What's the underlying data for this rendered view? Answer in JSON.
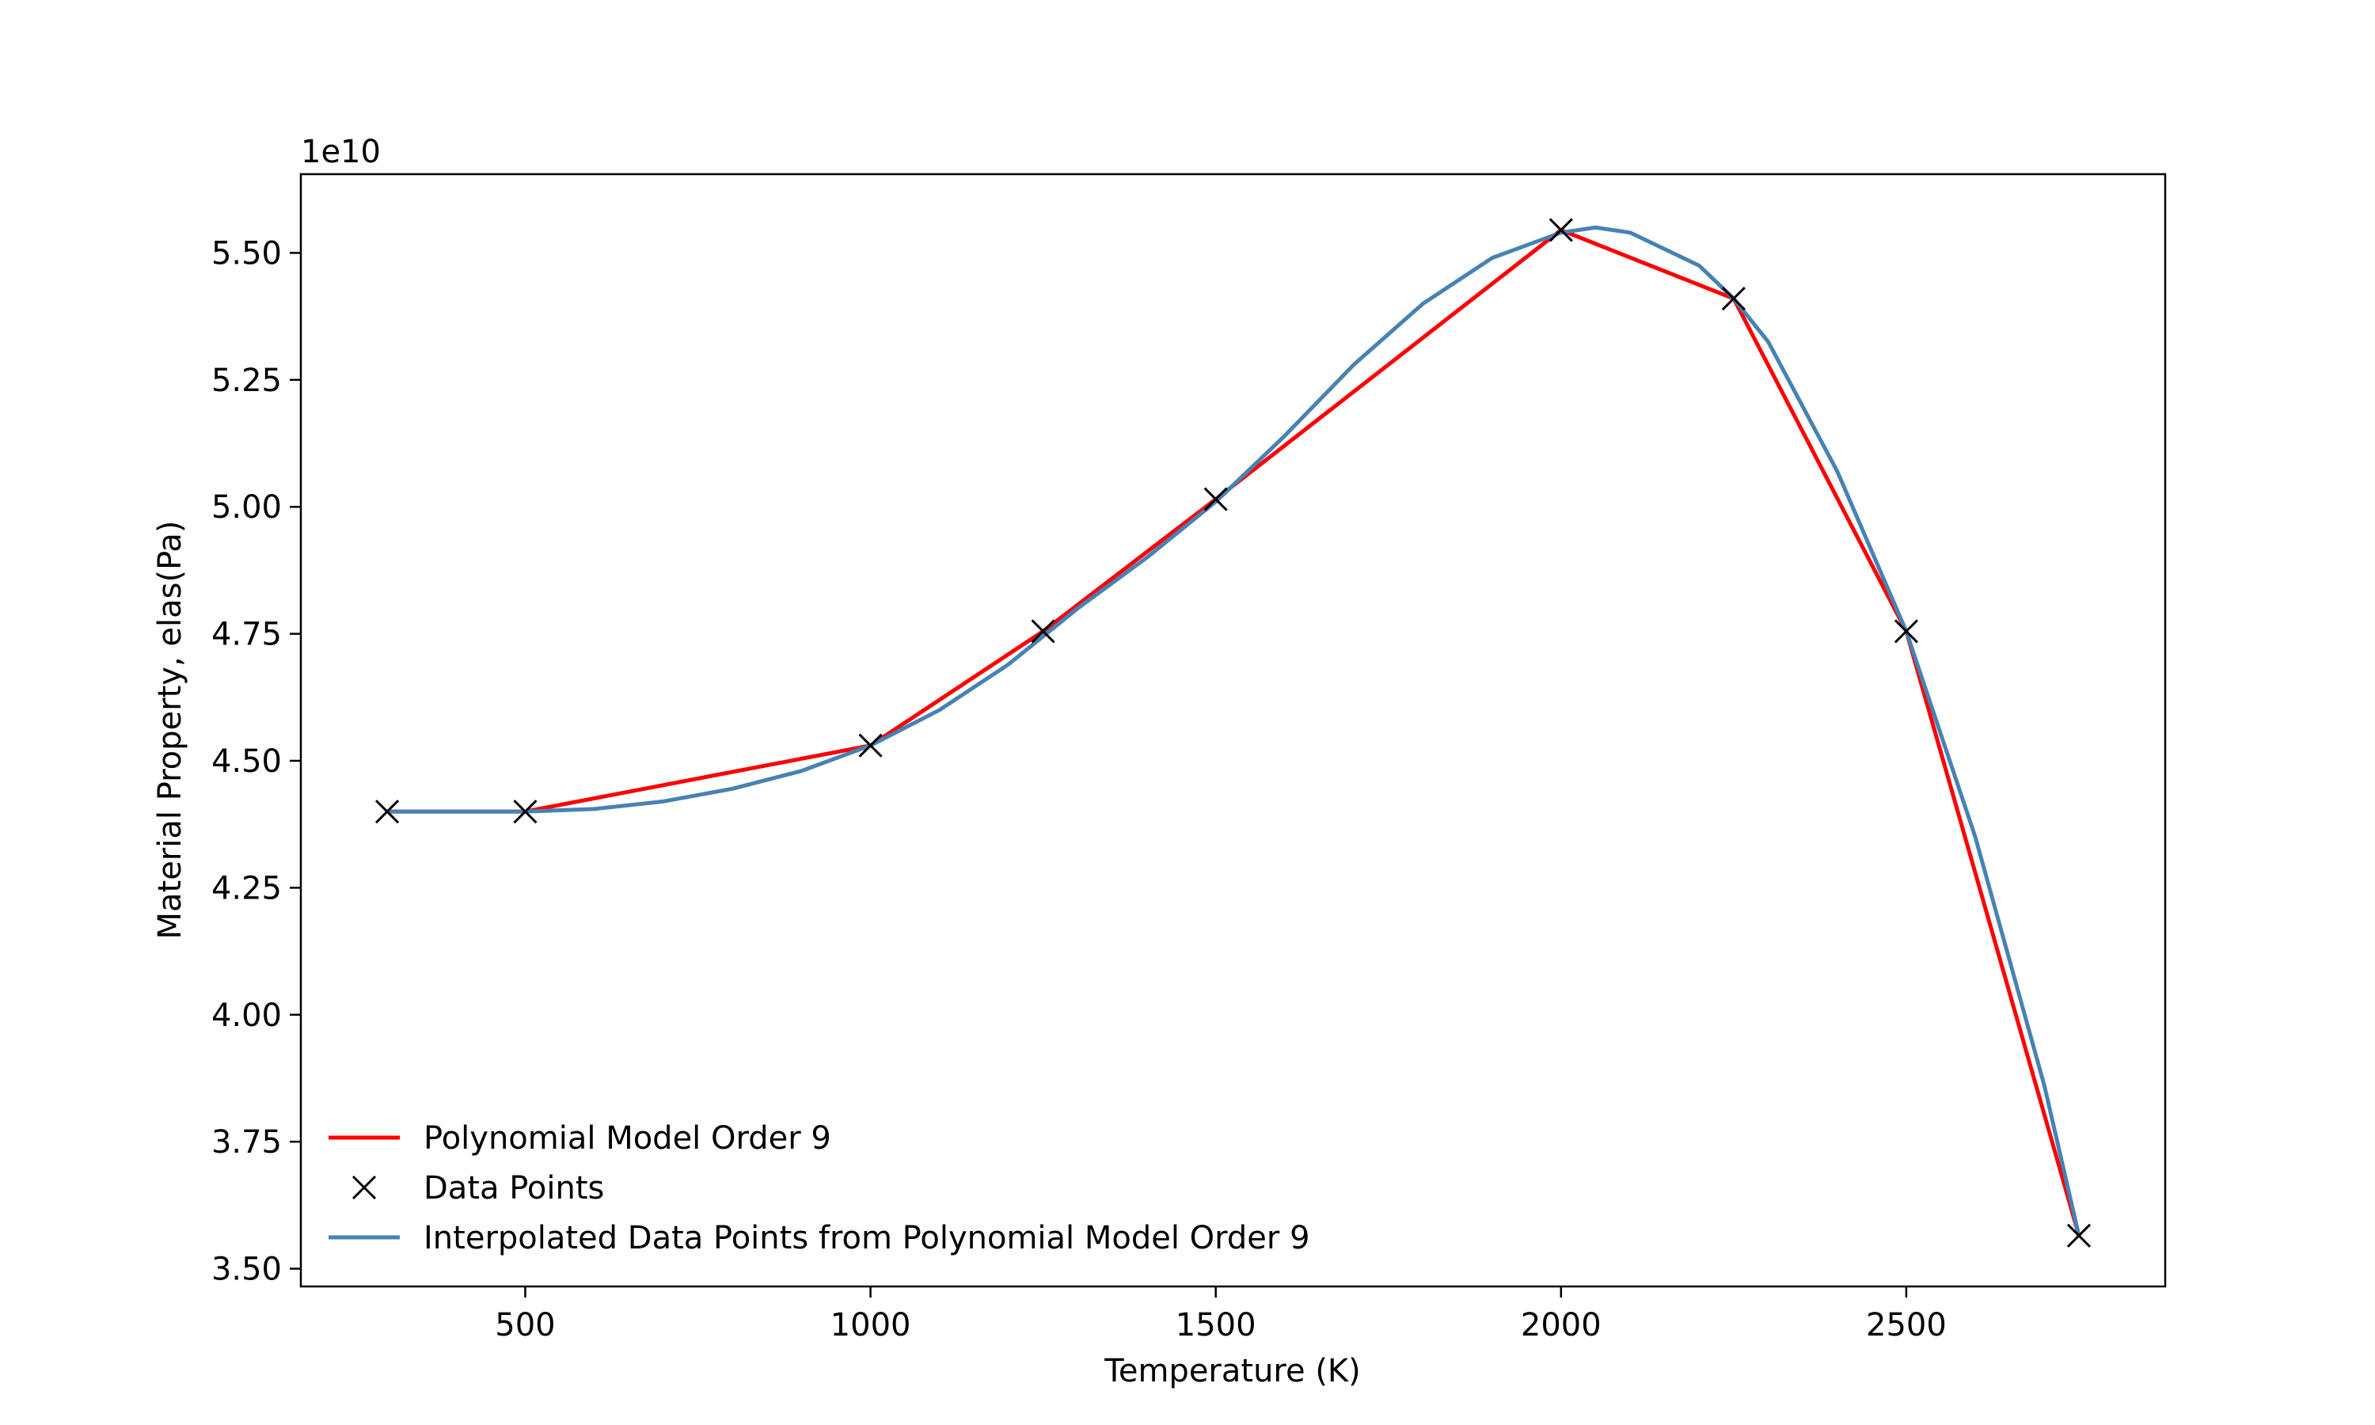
{
  "chart_data": {
    "type": "line",
    "xlabel": "Temperature (K)",
    "ylabel": "Material Property, elas(Pa)",
    "y_offset_label": "1e10",
    "xlim": [
      175,
      2875
    ],
    "ylim": [
      3.465,
      5.655
    ],
    "x_ticks": [
      500,
      1000,
      1500,
      2000,
      2500
    ],
    "x_tick_labels": [
      "500",
      "1000",
      "1500",
      "2000",
      "2500"
    ],
    "y_ticks": [
      3.5,
      3.75,
      4.0,
      4.25,
      4.5,
      4.75,
      5.0,
      5.25,
      5.5
    ],
    "y_tick_labels": [
      "3.50",
      "3.75",
      "4.00",
      "4.25",
      "4.50",
      "4.75",
      "5.00",
      "5.25",
      "5.50"
    ],
    "grid": false,
    "legend_position": "lower-left",
    "series": [
      {
        "name": "Polynomial Model Order 9",
        "style": "line",
        "color": "#ff0000",
        "x": [
          300,
          500,
          1000,
          1250,
          1500,
          2000,
          2250,
          2500,
          2750
        ],
        "y": [
          4.4,
          4.4,
          4.53,
          4.755,
          5.015,
          5.545,
          5.41,
          4.755,
          3.565
        ]
      },
      {
        "name": "Data Points",
        "style": "marker-x",
        "color": "#000000",
        "x": [
          300,
          500,
          1000,
          1250,
          1500,
          2000,
          2250,
          2500,
          2750
        ],
        "y": [
          4.4,
          4.4,
          4.53,
          4.755,
          5.015,
          5.545,
          5.41,
          4.755,
          3.565
        ]
      },
      {
        "name": "Interpolated Data Points from Polynomial Model Order 9",
        "style": "smooth-line",
        "color": "#4682b4",
        "x": [
          300,
          400,
          500,
          600,
          700,
          800,
          900,
          1000,
          1100,
          1200,
          1250,
          1300,
          1400,
          1500,
          1600,
          1700,
          1800,
          1900,
          2000,
          2050,
          2100,
          2200,
          2250,
          2300,
          2400,
          2500,
          2600,
          2700,
          2750
        ],
        "y": [
          4.4,
          4.4,
          4.4,
          4.405,
          4.42,
          4.445,
          4.48,
          4.53,
          4.6,
          4.69,
          4.745,
          4.8,
          4.9,
          5.01,
          5.14,
          5.28,
          5.4,
          5.49,
          5.54,
          5.55,
          5.54,
          5.475,
          5.41,
          5.325,
          5.07,
          4.755,
          4.35,
          3.86,
          3.565
        ]
      }
    ]
  }
}
